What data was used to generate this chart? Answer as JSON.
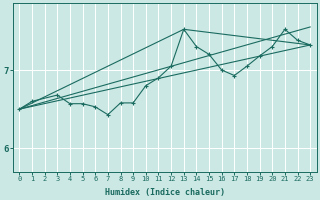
{
  "xlabel": "Humidex (Indice chaleur)",
  "ylabel": "",
  "bg_color": "#cce8e4",
  "grid_color": "#ffffff",
  "line_color": "#1a6b60",
  "xlim": [
    -0.5,
    23.5
  ],
  "ylim": [
    5.7,
    7.85
  ],
  "xticks": [
    0,
    1,
    2,
    3,
    4,
    5,
    6,
    7,
    8,
    9,
    10,
    11,
    12,
    13,
    14,
    15,
    16,
    17,
    18,
    19,
    20,
    21,
    22,
    23
  ],
  "yticks": [
    6,
    7
  ],
  "zigzag_x": [
    0,
    1,
    3,
    4,
    5,
    6,
    7,
    8,
    9,
    10,
    11,
    12,
    13,
    14,
    15,
    16,
    17,
    18,
    19,
    20,
    21,
    22,
    23
  ],
  "zigzag_y": [
    6.5,
    6.6,
    6.68,
    6.57,
    6.57,
    6.53,
    6.43,
    6.58,
    6.58,
    6.8,
    6.9,
    7.05,
    7.52,
    7.3,
    7.2,
    7.0,
    6.93,
    7.05,
    7.18,
    7.3,
    7.52,
    7.38,
    7.32
  ],
  "line1_x": [
    0,
    23
  ],
  "line1_y": [
    6.5,
    7.32
  ],
  "line2_x": [
    0,
    13,
    23
  ],
  "line2_y": [
    6.5,
    7.52,
    7.32
  ],
  "line3_x": [
    0,
    23
  ],
  "line3_y": [
    6.5,
    7.55
  ]
}
